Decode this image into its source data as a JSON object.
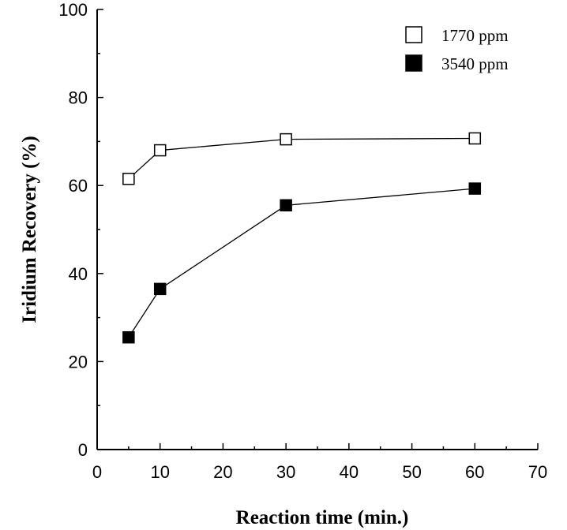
{
  "chart_data": {
    "type": "line",
    "title": "",
    "xlabel": "Reaction time (min.)",
    "ylabel": "Iridium  Recovery (%)",
    "xlim": [
      0,
      70
    ],
    "ylim": [
      0,
      100
    ],
    "x_ticks": [
      0,
      10,
      20,
      30,
      40,
      50,
      60,
      70
    ],
    "y_ticks": [
      0,
      20,
      40,
      60,
      80,
      100
    ],
    "grid": false,
    "legend_position": "top-right",
    "series": [
      {
        "name": "1770 ppm",
        "marker": "open-square",
        "color": "#000000",
        "x": [
          5,
          10,
          30,
          60
        ],
        "values": [
          61.5,
          68,
          70.5,
          70.7
        ]
      },
      {
        "name": "3540 ppm",
        "marker": "filled-square",
        "color": "#000000",
        "x": [
          5,
          10,
          30,
          60
        ],
        "values": [
          25.5,
          36.5,
          55.5,
          59.3
        ]
      }
    ]
  }
}
